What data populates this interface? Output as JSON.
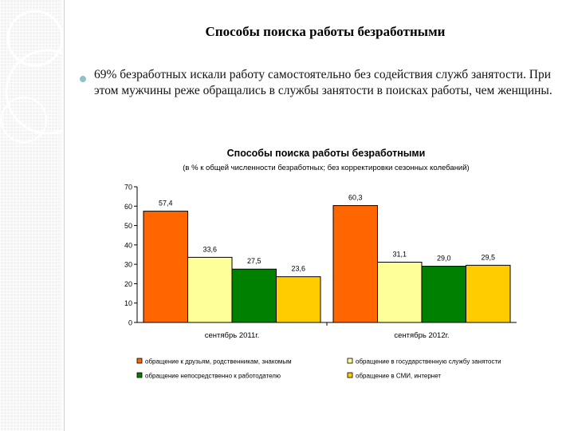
{
  "slide": {
    "title": "Способы поиска работы безработными",
    "bullet_text": "69% безработных искали работу самостоятельно без содействия служб занятости. При этом мужчины реже обращались в службы занятости в поисках работы, чем женщины."
  },
  "chart_data": {
    "type": "bar",
    "title": "Способы поиска работы безработными",
    "subtitle": "(в % к общей численности безработных; без корректировки сезонных колебаний)",
    "categories": [
      "сентябрь 2011г.",
      "сентябрь 2012г."
    ],
    "series": [
      {
        "name": "обращение к друзьям, родственникам, знакомым",
        "color": "#ff6600",
        "values": [
          57.4,
          60.3
        ],
        "labels": [
          "57,4",
          "60,3"
        ]
      },
      {
        "name": "обращение в государственную службу занятости",
        "color": "#ffff99",
        "values": [
          33.6,
          31.1
        ],
        "labels": [
          "33,6",
          "31,1"
        ]
      },
      {
        "name": "обращение непосредственно к работодателю",
        "color": "#008000",
        "values": [
          27.5,
          29.0
        ],
        "labels": [
          "27,5",
          "29,0"
        ]
      },
      {
        "name": "обращение в СМИ, интернет",
        "color": "#ffcc00",
        "values": [
          23.6,
          29.5
        ],
        "labels": [
          "23,6",
          "29,5"
        ]
      }
    ],
    "ylim": [
      0,
      70
    ],
    "yticks": [
      "0",
      "10",
      "20",
      "30",
      "40",
      "50",
      "60",
      "70"
    ],
    "xlabel": "",
    "ylabel": "",
    "legend_position": "bottom"
  }
}
